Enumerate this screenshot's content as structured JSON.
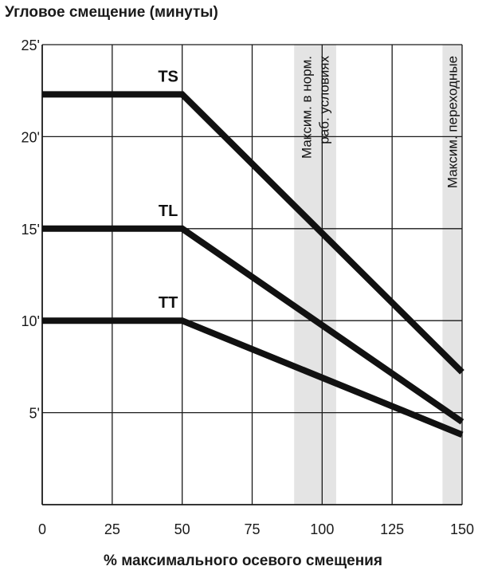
{
  "chart_data": {
    "type": "line",
    "title": "Угловое смещение (минуты)",
    "xlabel": "% максимального осевого смещения",
    "ylabel": "",
    "xlim": [
      0,
      150
    ],
    "ylim": [
      0,
      25
    ],
    "x_ticks": [
      "0",
      "25",
      "50",
      "75",
      "100",
      "125",
      "150"
    ],
    "y_ticks": [
      "5'",
      "10'",
      "15'",
      "20'",
      "25'"
    ],
    "y_tick_values": [
      5,
      10,
      15,
      20,
      25
    ],
    "x_tick_values": [
      0,
      25,
      50,
      75,
      100,
      125,
      150
    ],
    "grid": true,
    "series": [
      {
        "name": "TS",
        "x": [
          0,
          50,
          150
        ],
        "y": [
          22.3,
          22.3,
          7.2
        ]
      },
      {
        "name": "TL",
        "x": [
          0,
          50,
          150
        ],
        "y": [
          15.0,
          15.0,
          4.5
        ]
      },
      {
        "name": "TT",
        "x": [
          0,
          50,
          150
        ],
        "y": [
          10.0,
          10.0,
          3.8
        ]
      }
    ],
    "bands": [
      {
        "label_lines": [
          "Максим. в норм.",
          "раб. условиях"
        ],
        "x_range": [
          90,
          105
        ]
      },
      {
        "label_lines": [
          "Максим. переходные"
        ],
        "x_range": [
          143,
          150
        ]
      }
    ]
  },
  "colors": {
    "line": "#111111",
    "band": "#e4e4e4",
    "grid": "#1a1a1a"
  }
}
